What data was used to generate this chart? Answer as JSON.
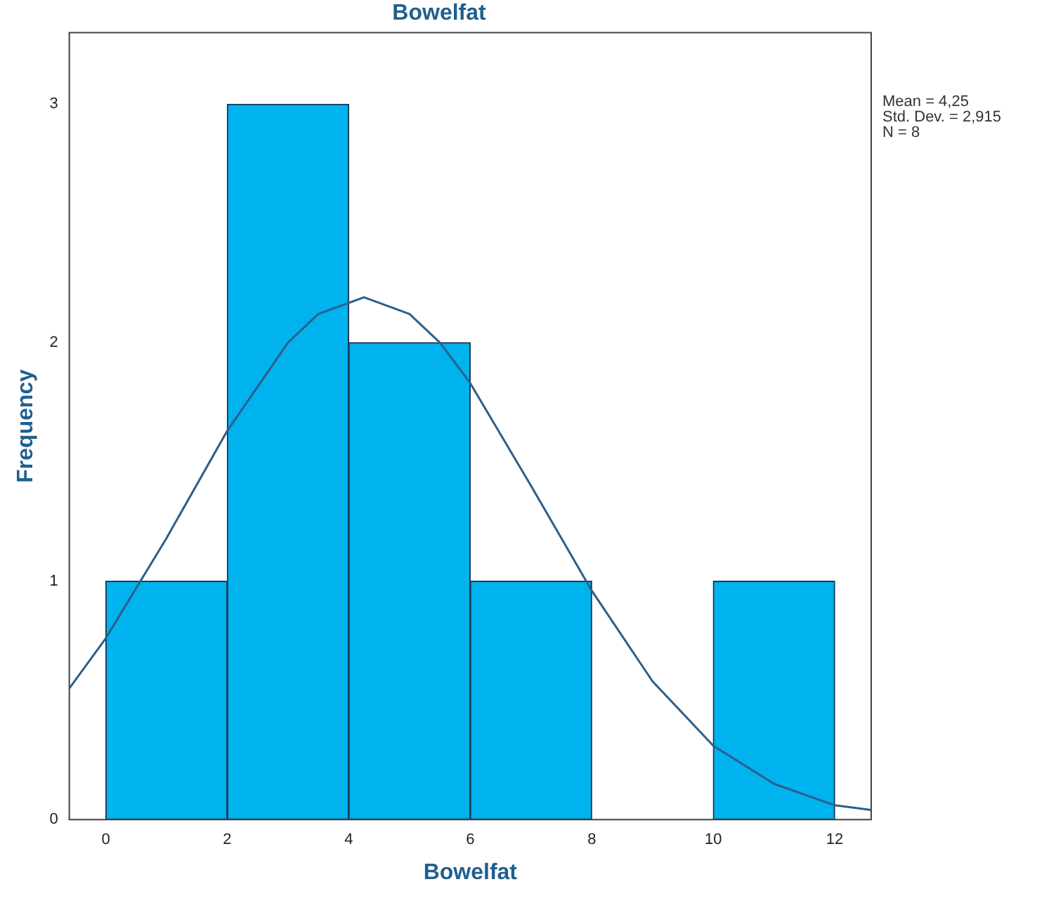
{
  "chart_data": {
    "type": "histogram",
    "title": "Bowelfat",
    "xlabel": "Bowelfat",
    "ylabel": "Frequency",
    "bins": [
      0,
      2,
      4,
      6,
      8,
      10,
      12
    ],
    "values": [
      1,
      3,
      2,
      1,
      0,
      1
    ],
    "color": "#00b2ee",
    "xlim": [
      -0.6,
      12.6
    ],
    "xticks": [
      0,
      2,
      4,
      6,
      8,
      10,
      12
    ],
    "ylim": [
      0,
      3.3
    ],
    "yticks": [
      0,
      1,
      2,
      3
    ],
    "grid": false,
    "series": [
      {
        "type": "line",
        "color": "#2b5f8c",
        "x": [
          -0.6,
          0,
          1,
          2,
          3,
          3.5,
          4.25,
          5,
          5.5,
          6,
          7,
          8,
          9,
          10,
          11,
          12,
          12.6
        ],
        "values": [
          0.55,
          0.76,
          1.18,
          1.63,
          2,
          2.12,
          2.19,
          2.12,
          2,
          1.83,
          1.4,
          0.96,
          0.58,
          0.31,
          0.15,
          0.06,
          0.04
        ]
      }
    ],
    "annotations": [
      "Mean = 4,25",
      "Std. Dev. = 2,915",
      "N = 8"
    ]
  }
}
